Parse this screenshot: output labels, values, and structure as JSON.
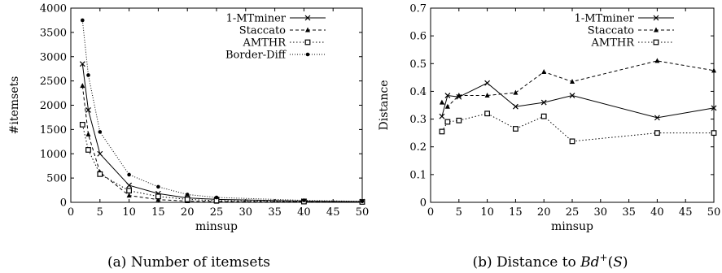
{
  "chart_data": [
    {
      "type": "line",
      "caption": "(a) Number of itemsets",
      "title": "",
      "xlabel": "minsup",
      "ylabel": "#itemsets",
      "xlim": [
        0,
        50
      ],
      "ylim": [
        0,
        4000
      ],
      "xticks": [
        "0",
        "5",
        "10",
        "15",
        "20",
        "25",
        "30",
        "35",
        "40",
        "45",
        "50"
      ],
      "yticks": [
        "0",
        "500",
        "1000",
        "1500",
        "2000",
        "2500",
        "3000",
        "3500",
        "4000"
      ],
      "grid": false,
      "legend_position": "top-right",
      "x": [
        2,
        3,
        5,
        10,
        15,
        20,
        25,
        40,
        50
      ],
      "series": [
        {
          "name": "1-MTminer",
          "marker": "x",
          "dash": "solid",
          "values": [
            2850,
            1900,
            1000,
            350,
            180,
            90,
            60,
            25,
            15
          ]
        },
        {
          "name": "Staccato",
          "marker": "triangle",
          "dash": "dashed",
          "values": [
            2400,
            1400,
            620,
            140,
            55,
            25,
            15,
            8,
            5
          ]
        },
        {
          "name": "AMTHR",
          "marker": "square",
          "dash": "dotted",
          "values": [
            1600,
            1080,
            580,
            240,
            120,
            60,
            35,
            15,
            8
          ]
        },
        {
          "name": "Border-Diff",
          "marker": "dot",
          "dash": "densedot",
          "values": [
            3750,
            2620,
            1450,
            570,
            320,
            160,
            100,
            40,
            20
          ]
        }
      ]
    },
    {
      "type": "line",
      "caption": "(b) Distance to Bd⁺(S)",
      "title": "",
      "xlabel": "minsup",
      "ylabel": "Distance",
      "xlim": [
        0,
        50
      ],
      "ylim": [
        0,
        0.7
      ],
      "xticks": [
        "0",
        "5",
        "10",
        "15",
        "20",
        "25",
        "30",
        "35",
        "40",
        "45",
        "50"
      ],
      "yticks": [
        "0",
        "0.1",
        "0.2",
        "0.3",
        "0.4",
        "0.5",
        "0.6",
        "0.7"
      ],
      "grid": false,
      "legend_position": "top-right",
      "x": [
        2,
        3,
        5,
        10,
        15,
        20,
        25,
        40,
        50
      ],
      "series": [
        {
          "name": "1-MTminer",
          "marker": "x",
          "dash": "solid",
          "values": [
            0.31,
            0.385,
            0.38,
            0.43,
            0.345,
            0.36,
            0.385,
            0.305,
            0.34
          ]
        },
        {
          "name": "Staccato",
          "marker": "triangle",
          "dash": "dashed",
          "values": [
            0.36,
            0.345,
            0.385,
            0.385,
            0.395,
            0.47,
            0.435,
            0.51,
            0.475
          ]
        },
        {
          "name": "AMTHR",
          "marker": "square",
          "dash": "dotted",
          "values": [
            0.255,
            0.29,
            0.295,
            0.32,
            0.265,
            0.31,
            0.22,
            0.25,
            0.25
          ]
        }
      ]
    }
  ]
}
